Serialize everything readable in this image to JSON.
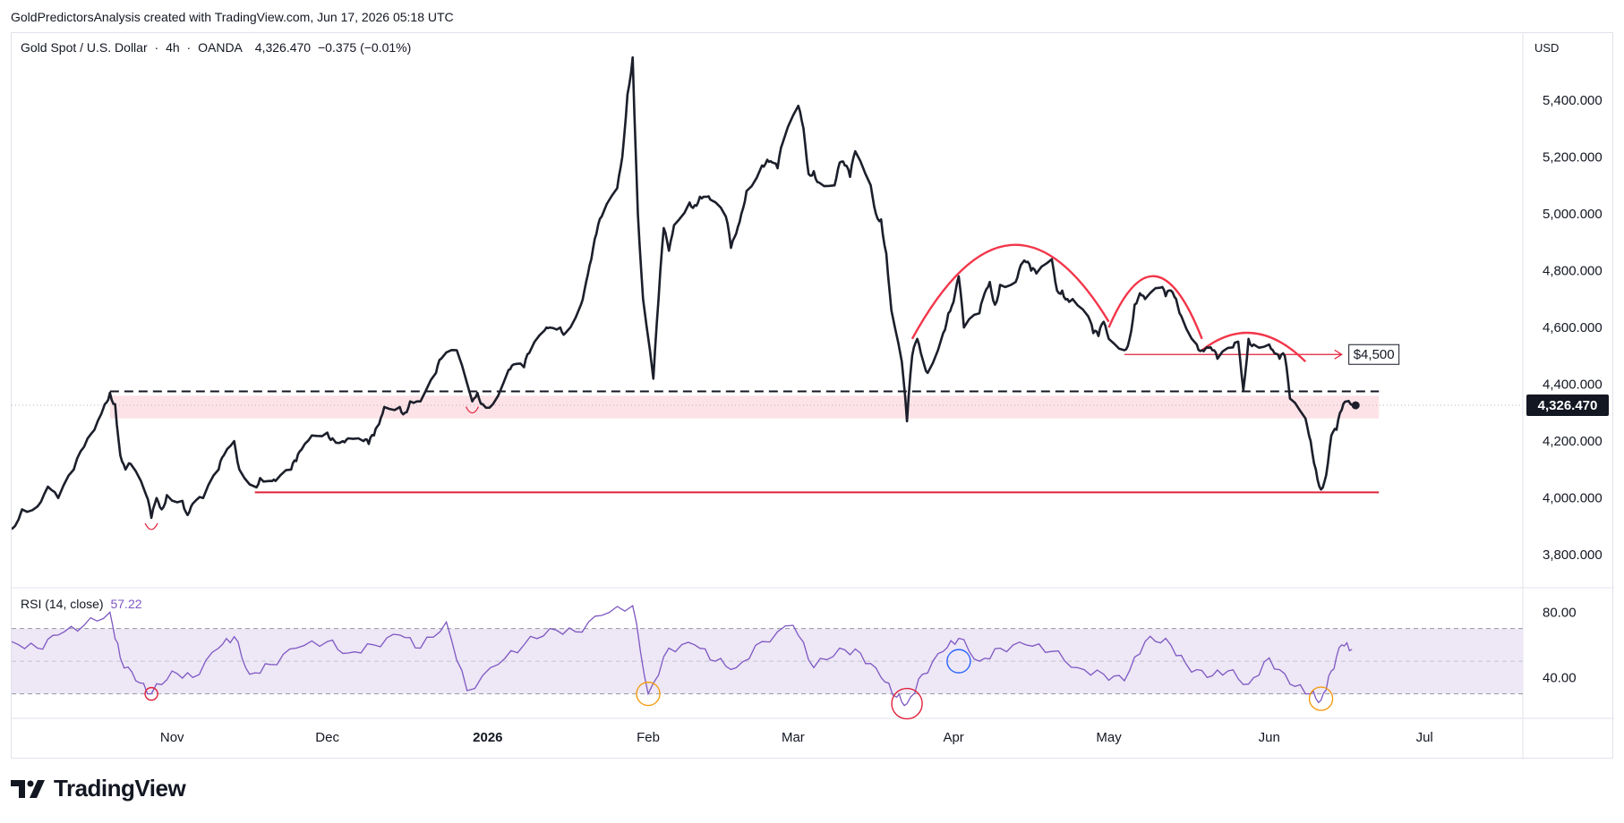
{
  "header": {
    "attribution": "GoldPredictorsAnalysis created with TradingView.com, Jun 17, 2026 05:18 UTC"
  },
  "legend": {
    "symbol": "Gold Spot / U.S. Dollar",
    "interval": "4h",
    "source": "OANDA",
    "price": "4,326.470",
    "change": "−0.375 (−0.01%)"
  },
  "currency": "USD",
  "rsi_legend": {
    "label": "RSI (14, close)",
    "value": "57.22"
  },
  "brand": {
    "name": "TradingView"
  },
  "colors": {
    "price_line": "#1c1f2b",
    "support": "#e0203a",
    "arc": "#f2364a",
    "rsi_line": "#7e57c2",
    "rsi_band": "#ede7f6",
    "zone": "#fde3e7",
    "circle_red": "#e0203a",
    "circle_orange": "#f39c12",
    "circle_blue": "#2962ff"
  },
  "chart_data": [
    {
      "type": "line",
      "name": "price",
      "y_axis": {
        "ticks": [
          3800,
          4000,
          4200,
          4400,
          4600,
          4800,
          5000,
          5200,
          5400
        ],
        "tick_labels": [
          "3,800.000",
          "4,000.000",
          "4,200.000",
          "4,400.000",
          "4,600.000",
          "4,800.000",
          "5,000.000",
          "5,200.000",
          "5,400.000"
        ],
        "ylim": [
          3700,
          5620
        ]
      },
      "x_axis": {
        "ticks": [
          "Nov",
          "Dec",
          "2026",
          "Feb",
          "Mar",
          "Apr",
          "May",
          "Jun",
          "Jul"
        ],
        "start": "2025-10-01",
        "end": "2026-07-20"
      },
      "current_price": 4326.47,
      "current_price_label": "4,326.470",
      "points": [
        [
          "2025-10-01",
          3890
        ],
        [
          "2025-10-03",
          3960
        ],
        [
          "2025-10-06",
          3970
        ],
        [
          "2025-10-08",
          4040
        ],
        [
          "2025-10-10",
          4000
        ],
        [
          "2025-10-13",
          4100
        ],
        [
          "2025-10-15",
          4180
        ],
        [
          "2025-10-17",
          4240
        ],
        [
          "2025-10-19",
          4330
        ],
        [
          "2025-10-20",
          4370
        ],
        [
          "2025-10-21",
          4330
        ],
        [
          "2025-10-22",
          4150
        ],
        [
          "2025-10-23",
          4100
        ],
        [
          "2025-10-24",
          4120
        ],
        [
          "2025-10-27",
          4010
        ],
        [
          "2025-10-28",
          3930
        ],
        [
          "2025-10-29",
          4000
        ],
        [
          "2025-10-30",
          3960
        ],
        [
          "2025-10-31",
          4010
        ],
        [
          "2025-11-03",
          3990
        ],
        [
          "2025-11-04",
          3940
        ],
        [
          "2025-11-05",
          3980
        ],
        [
          "2025-11-07",
          4000
        ],
        [
          "2025-11-10",
          4100
        ],
        [
          "2025-11-11",
          4150
        ],
        [
          "2025-11-13",
          4200
        ],
        [
          "2025-11-14",
          4100
        ],
        [
          "2025-11-17",
          4040
        ],
        [
          "2025-11-18",
          4070
        ],
        [
          "2025-11-20",
          4060
        ],
        [
          "2025-11-21",
          4060
        ],
        [
          "2025-11-24",
          4100
        ],
        [
          "2025-11-25",
          4130
        ],
        [
          "2025-11-26",
          4170
        ],
        [
          "2025-11-28",
          4220
        ],
        [
          "2025-12-01",
          4230
        ],
        [
          "2025-12-02",
          4210
        ],
        [
          "2025-12-04",
          4200
        ],
        [
          "2025-12-05",
          4210
        ],
        [
          "2025-12-08",
          4200
        ],
        [
          "2025-12-09",
          4190
        ],
        [
          "2025-12-10",
          4220
        ],
        [
          "2025-12-11",
          4260
        ],
        [
          "2025-12-12",
          4320
        ],
        [
          "2025-12-15",
          4320
        ],
        [
          "2025-12-16",
          4300
        ],
        [
          "2025-12-17",
          4340
        ],
        [
          "2025-12-19",
          4340
        ],
        [
          "2025-12-22",
          4440
        ],
        [
          "2025-12-23",
          4490
        ],
        [
          "2025-12-26",
          4520
        ],
        [
          "2025-12-29",
          4340
        ],
        [
          "2025-12-30",
          4370
        ],
        [
          "2025-12-31",
          4330
        ],
        [
          "2026-01-02",
          4330
        ],
        [
          "2026-01-05",
          4450
        ],
        [
          "2026-01-06",
          4470
        ],
        [
          "2026-01-08",
          4460
        ],
        [
          "2026-01-09",
          4510
        ],
        [
          "2026-01-12",
          4590
        ],
        [
          "2026-01-13",
          4600
        ],
        [
          "2026-01-15",
          4600
        ],
        [
          "2026-01-16",
          4580
        ],
        [
          "2026-01-19",
          4680
        ],
        [
          "2026-01-20",
          4760
        ],
        [
          "2026-01-21",
          4840
        ],
        [
          "2026-01-22",
          4930
        ],
        [
          "2026-01-23",
          4990
        ],
        [
          "2026-01-26",
          5090
        ],
        [
          "2026-01-27",
          5200
        ],
        [
          "2026-01-28",
          5420
        ],
        [
          "2026-01-29",
          5550
        ],
        [
          "2026-01-30",
          5000
        ],
        [
          "2026-01-31",
          4700
        ],
        [
          "2026-02-02",
          4420
        ],
        [
          "2026-02-03",
          4700
        ],
        [
          "2026-02-04",
          4950
        ],
        [
          "2026-02-05",
          4870
        ],
        [
          "2026-02-06",
          4960
        ],
        [
          "2026-02-09",
          5040
        ],
        [
          "2026-02-10",
          5030
        ],
        [
          "2026-02-11",
          5060
        ],
        [
          "2026-02-12",
          5060
        ],
        [
          "2026-02-13",
          5050
        ],
        [
          "2026-02-16",
          4990
        ],
        [
          "2026-02-17",
          4880
        ],
        [
          "2026-02-18",
          4930
        ],
        [
          "2026-02-19",
          5000
        ],
        [
          "2026-02-20",
          5080
        ],
        [
          "2026-02-23",
          5170
        ],
        [
          "2026-02-24",
          5190
        ],
        [
          "2026-02-25",
          5180
        ],
        [
          "2026-02-26",
          5160
        ],
        [
          "2026-02-27",
          5250
        ],
        [
          "2026-03-02",
          5380
        ],
        [
          "2026-03-03",
          5300
        ],
        [
          "2026-03-04",
          5140
        ],
        [
          "2026-03-05",
          5150
        ],
        [
          "2026-03-06",
          5110
        ],
        [
          "2026-03-09",
          5100
        ],
        [
          "2026-03-10",
          5180
        ],
        [
          "2026-03-11",
          5170
        ],
        [
          "2026-03-12",
          5130
        ],
        [
          "2026-03-13",
          5220
        ],
        [
          "2026-03-16",
          5100
        ],
        [
          "2026-03-17",
          5000
        ],
        [
          "2026-03-18",
          4980
        ],
        [
          "2026-03-19",
          4860
        ],
        [
          "2026-03-20",
          4660
        ],
        [
          "2026-03-22",
          4480
        ],
        [
          "2026-03-23",
          4270
        ],
        [
          "2026-03-24",
          4500
        ],
        [
          "2026-03-25",
          4560
        ],
        [
          "2026-03-26",
          4490
        ],
        [
          "2026-03-27",
          4440
        ],
        [
          "2026-03-30",
          4580
        ],
        [
          "2026-03-31",
          4650
        ],
        [
          "2026-04-01",
          4690
        ],
        [
          "2026-04-02",
          4780
        ],
        [
          "2026-04-03",
          4600
        ],
        [
          "2026-04-06",
          4650
        ],
        [
          "2026-04-07",
          4720
        ],
        [
          "2026-04-08",
          4760
        ],
        [
          "2026-04-09",
          4680
        ],
        [
          "2026-04-10",
          4750
        ],
        [
          "2026-04-13",
          4760
        ],
        [
          "2026-04-14",
          4820
        ],
        [
          "2026-04-15",
          4830
        ],
        [
          "2026-04-16",
          4800
        ],
        [
          "2026-04-17",
          4790
        ],
        [
          "2026-04-20",
          4840
        ],
        [
          "2026-04-21",
          4730
        ],
        [
          "2026-04-22",
          4730
        ],
        [
          "2026-04-23",
          4700
        ],
        [
          "2026-04-24",
          4700
        ],
        [
          "2026-04-27",
          4640
        ],
        [
          "2026-04-28",
          4580
        ],
        [
          "2026-04-29",
          4570
        ],
        [
          "2026-04-30",
          4620
        ],
        [
          "2026-05-01",
          4560
        ],
        [
          "2026-05-04",
          4520
        ],
        [
          "2026-05-05",
          4560
        ],
        [
          "2026-05-06",
          4680
        ],
        [
          "2026-05-07",
          4720
        ],
        [
          "2026-05-08",
          4700
        ],
        [
          "2026-05-11",
          4740
        ],
        [
          "2026-05-12",
          4710
        ],
        [
          "2026-05-13",
          4730
        ],
        [
          "2026-05-14",
          4700
        ],
        [
          "2026-05-15",
          4640
        ],
        [
          "2026-05-18",
          4540
        ],
        [
          "2026-05-19",
          4520
        ],
        [
          "2026-05-20",
          4530
        ],
        [
          "2026-05-21",
          4520
        ],
        [
          "2026-05-22",
          4490
        ],
        [
          "2026-05-25",
          4530
        ],
        [
          "2026-05-26",
          4550
        ],
        [
          "2026-05-27",
          4380
        ],
        [
          "2026-05-28",
          4560
        ],
        [
          "2026-05-29",
          4540
        ],
        [
          "2026-06-01",
          4540
        ],
        [
          "2026-06-02",
          4510
        ],
        [
          "2026-06-03",
          4490
        ],
        [
          "2026-06-04",
          4500
        ],
        [
          "2026-06-05",
          4350
        ],
        [
          "2026-06-08",
          4280
        ],
        [
          "2026-06-09",
          4200
        ],
        [
          "2026-06-10",
          4100
        ],
        [
          "2026-06-11",
          4030
        ],
        [
          "2026-06-12",
          4080
        ],
        [
          "2026-06-13",
          4220
        ],
        [
          "2026-06-14",
          4240
        ],
        [
          "2026-06-15",
          4310
        ],
        [
          "2026-06-16",
          4340
        ],
        [
          "2026-06-17",
          4326
        ]
      ],
      "annotations": {
        "resistance_dashed": {
          "from": "2025-10-20",
          "to": "2026-06-17",
          "y": 4375
        },
        "support_line": {
          "from": "2025-11-17",
          "to": "2026-06-17",
          "y": 4020
        },
        "zone": {
          "from": "2025-10-20",
          "to": "2026-06-17",
          "y1": 4280,
          "y2": 4360
        },
        "target_label": "$4,500",
        "target_line": {
          "from": "2026-05-04",
          "to": "2026-06-15",
          "y": 4505
        },
        "arcs": [
          {
            "from": "2026-03-24",
            "to": "2026-05-01",
            "start_y": 4560,
            "peak_y": 4890,
            "end_y": 4620
          },
          {
            "from": "2026-05-01",
            "to": "2026-05-19",
            "start_y": 4600,
            "peak_y": 4780,
            "end_y": 4560
          },
          {
            "from": "2026-05-19",
            "to": "2026-06-08",
            "start_y": 4520,
            "peak_y": 4580,
            "end_y": 4480
          }
        ]
      }
    },
    {
      "type": "line",
      "name": "RSI (14, close)",
      "y_axis": {
        "ticks": [
          40,
          80
        ],
        "tick_labels": [
          "40.00",
          "80.00"
        ],
        "ylim": [
          15,
          95
        ],
        "band": [
          30,
          70
        ],
        "midline": 50
      },
      "last_value": 57.22,
      "points": [
        [
          "2025-10-01",
          62
        ],
        [
          "2025-10-06",
          58
        ],
        [
          "2025-10-10",
          66
        ],
        [
          "2025-10-15",
          72
        ],
        [
          "2025-10-20",
          80
        ],
        [
          "2025-10-22",
          52
        ],
        [
          "2025-10-25",
          38
        ],
        [
          "2025-10-28",
          30
        ],
        [
          "2025-11-01",
          44
        ],
        [
          "2025-11-05",
          40
        ],
        [
          "2025-11-10",
          58
        ],
        [
          "2025-11-13",
          65
        ],
        [
          "2025-11-16",
          42
        ],
        [
          "2025-11-20",
          48
        ],
        [
          "2025-11-25",
          58
        ],
        [
          "2025-12-01",
          62
        ],
        [
          "2025-12-05",
          55
        ],
        [
          "2025-12-10",
          60
        ],
        [
          "2025-12-15",
          66
        ],
        [
          "2025-12-19",
          58
        ],
        [
          "2025-12-24",
          74
        ],
        [
          "2025-12-28",
          32
        ],
        [
          "2026-01-03",
          48
        ],
        [
          "2026-01-08",
          60
        ],
        [
          "2026-01-13",
          70
        ],
        [
          "2026-01-18",
          68
        ],
        [
          "2026-01-23",
          78
        ],
        [
          "2026-01-29",
          84
        ],
        [
          "2026-02-01",
          30
        ],
        [
          "2026-02-05",
          58
        ],
        [
          "2026-02-10",
          60
        ],
        [
          "2026-02-14",
          50
        ],
        [
          "2026-02-18",
          46
        ],
        [
          "2026-02-23",
          62
        ],
        [
          "2026-03-01",
          72
        ],
        [
          "2026-03-05",
          46
        ],
        [
          "2026-03-10",
          58
        ],
        [
          "2026-03-14",
          55
        ],
        [
          "2026-03-18",
          40
        ],
        [
          "2026-03-21",
          28
        ],
        [
          "2026-03-23",
          24
        ],
        [
          "2026-03-26",
          42
        ],
        [
          "2026-03-30",
          56
        ],
        [
          "2026-04-02",
          64
        ],
        [
          "2026-04-06",
          50
        ],
        [
          "2026-04-10",
          58
        ],
        [
          "2026-04-15",
          60
        ],
        [
          "2026-04-20",
          56
        ],
        [
          "2026-04-25",
          46
        ],
        [
          "2026-04-30",
          42
        ],
        [
          "2026-05-04",
          38
        ],
        [
          "2026-05-08",
          62
        ],
        [
          "2026-05-12",
          64
        ],
        [
          "2026-05-16",
          48
        ],
        [
          "2026-05-20",
          40
        ],
        [
          "2026-05-24",
          44
        ],
        [
          "2026-05-28",
          36
        ],
        [
          "2026-06-01",
          52
        ],
        [
          "2026-06-05",
          36
        ],
        [
          "2026-06-09",
          30
        ],
        [
          "2026-06-11",
          26
        ],
        [
          "2026-06-13",
          44
        ],
        [
          "2026-06-15",
          60
        ],
        [
          "2026-06-17",
          57.22
        ]
      ],
      "markers": [
        {
          "date": "2025-10-28",
          "y": 30,
          "color": "red"
        },
        {
          "date": "2026-02-01",
          "y": 30,
          "color": "orange"
        },
        {
          "date": "2026-03-23",
          "y": 24,
          "color": "red"
        },
        {
          "date": "2026-04-02",
          "y": 50,
          "color": "blue"
        },
        {
          "date": "2026-06-11",
          "y": 27,
          "color": "orange"
        }
      ]
    }
  ]
}
